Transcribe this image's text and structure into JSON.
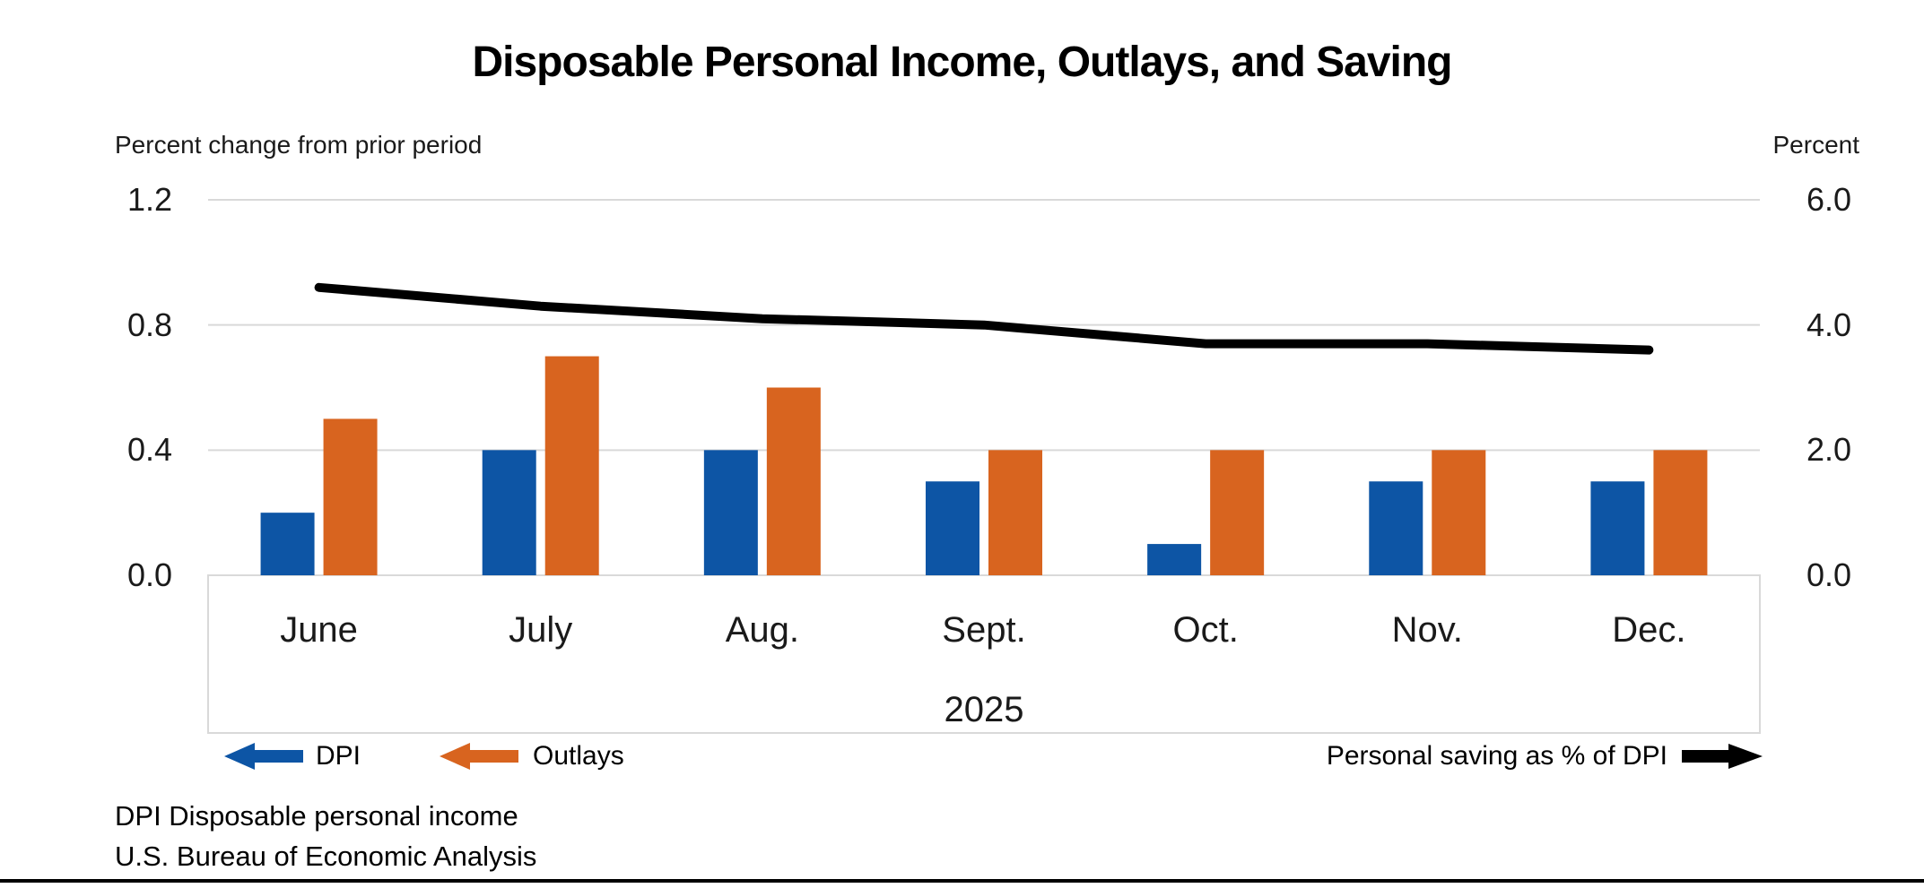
{
  "title": "Disposable Personal Income, Outlays, and Saving",
  "footnotes": {
    "line1": "DPI Disposable personal income",
    "line2": "U.S. Bureau of Economic Analysis"
  },
  "colors": {
    "dpi_blue": "#0d55a5",
    "outlays_orange": "#d8641f",
    "saving_black": "#000000",
    "gridline_gray": "#d9d9d9",
    "text_black": "#1a1a1a"
  },
  "chart_data": {
    "type": "bar+line combo",
    "categories": [
      "June",
      "July",
      "Aug.",
      "Sept.",
      "Oct.",
      "Nov.",
      "Dec."
    ],
    "x_label_year": "2025",
    "series": [
      {
        "name": "DPI",
        "type": "bar",
        "axis": "left",
        "color_key": "dpi_blue",
        "values": [
          0.2,
          0.4,
          0.4,
          0.3,
          0.1,
          0.3,
          0.3
        ]
      },
      {
        "name": "Outlays",
        "type": "bar",
        "axis": "left",
        "color_key": "outlays_orange",
        "values": [
          0.5,
          0.7,
          0.6,
          0.4,
          0.4,
          0.4,
          0.4
        ]
      },
      {
        "name": "Personal saving as % of DPI",
        "type": "line",
        "axis": "right",
        "color_key": "saving_black",
        "values": [
          4.6,
          4.3,
          4.1,
          4.0,
          3.7,
          3.7,
          3.6
        ]
      }
    ],
    "left_axis": {
      "label": "Percent change from prior period",
      "ticks": [
        "1.2",
        "0.8",
        "0.4",
        "0.0"
      ],
      "ylim": [
        0,
        1.2
      ]
    },
    "right_axis": {
      "label": "Percent",
      "ticks": [
        "6.0",
        "4.0",
        "2.0",
        "0.0"
      ],
      "ylim": [
        0,
        6.0
      ]
    },
    "grid": true,
    "legend_position": "bottom"
  }
}
